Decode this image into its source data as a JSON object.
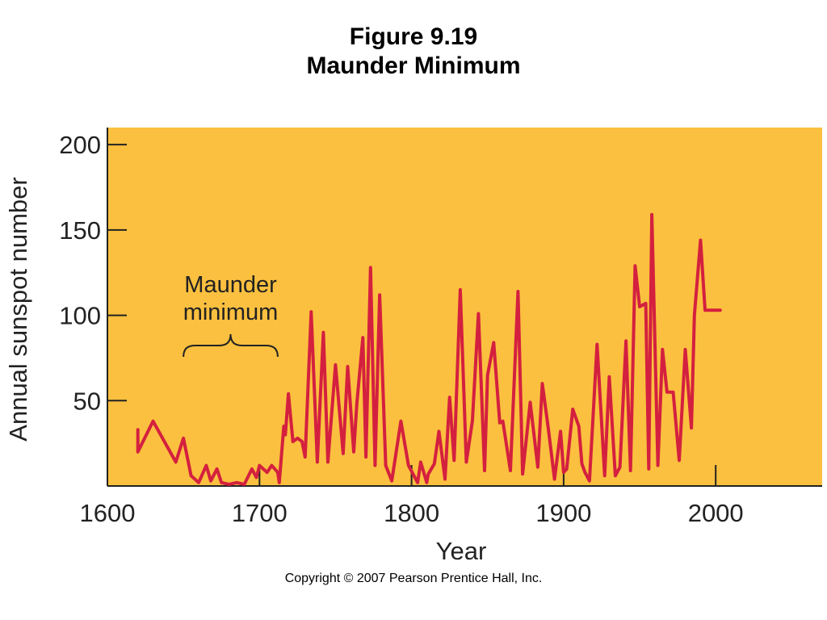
{
  "figure": {
    "number": "Figure 9.19",
    "title": "Maunder Minimum"
  },
  "copyright": "Copyright © 2007 Pearson Prentice Hall, Inc.",
  "colors": {
    "plot_background": "#fbc03f",
    "line": "#d4203f",
    "axis": "#222222"
  },
  "chart_data": {
    "type": "line",
    "title": "Maunder Minimum",
    "xlabel": "Year",
    "ylabel": "Annual sunspot number",
    "xlim": [
      1600,
      2070
    ],
    "ylim": [
      0,
      210
    ],
    "x_ticks": [
      1600,
      1700,
      1800,
      1900,
      2000
    ],
    "y_ticks": [
      50,
      100,
      150,
      200
    ],
    "grid": false,
    "annotations": [
      {
        "text": "Maunder\nminimum",
        "x_start": 1650,
        "x_end": 1712
      }
    ],
    "series": [
      {
        "x": [
          1620,
          1620,
          1630,
          1640,
          1645,
          1650,
          1655,
          1660,
          1665,
          1668,
          1672,
          1675,
          1680,
          1685,
          1690,
          1695,
          1698,
          1700,
          1705,
          1708,
          1712,
          1713,
          1716,
          1717,
          1719,
          1722,
          1725,
          1728,
          1730,
          1734,
          1738,
          1742,
          1745,
          1750,
          1755,
          1758,
          1762,
          1764,
          1768,
          1770,
          1773,
          1776,
          1779,
          1783,
          1787,
          1793,
          1798,
          1804,
          1806,
          1810,
          1811,
          1815,
          1818,
          1822,
          1825,
          1828,
          1832,
          1836,
          1840,
          1844,
          1848,
          1850,
          1854,
          1858,
          1860,
          1865,
          1870,
          1873,
          1878,
          1883,
          1886,
          1890,
          1894,
          1898,
          1900,
          1902,
          1906,
          1910,
          1912,
          1914,
          1917,
          1922,
          1927,
          1930,
          1934,
          1937,
          1941,
          1944,
          1947,
          1950,
          1954,
          1956,
          1958,
          1962,
          1965,
          1968,
          1972,
          1976,
          1980,
          1984,
          1986,
          1990,
          1993,
          2000,
          2002,
          2003,
          2001
        ],
        "y": [
          33,
          20,
          38,
          22,
          14,
          28,
          6,
          2,
          12,
          3,
          10,
          2,
          1,
          2,
          1,
          10,
          5,
          12,
          8,
          12,
          8,
          2,
          35,
          30,
          54,
          26,
          28,
          26,
          17,
          102,
          14,
          90,
          14,
          71,
          19,
          70,
          20,
          48,
          87,
          17,
          128,
          12,
          112,
          12,
          3,
          38,
          12,
          2,
          14,
          2,
          7,
          13,
          32,
          4,
          52,
          15,
          115,
          14,
          38,
          101,
          9,
          65,
          84,
          37,
          38,
          9,
          114,
          7,
          49,
          11,
          60,
          33,
          4,
          32,
          8,
          10,
          45,
          35,
          13,
          8,
          3,
          83,
          6,
          64,
          6,
          11,
          85,
          9,
          129,
          105,
          107,
          10,
          159,
          12,
          80,
          55,
          55,
          15,
          80,
          34,
          100,
          144,
          103,
          103,
          103,
          103,
          103
        ]
      }
    ]
  }
}
